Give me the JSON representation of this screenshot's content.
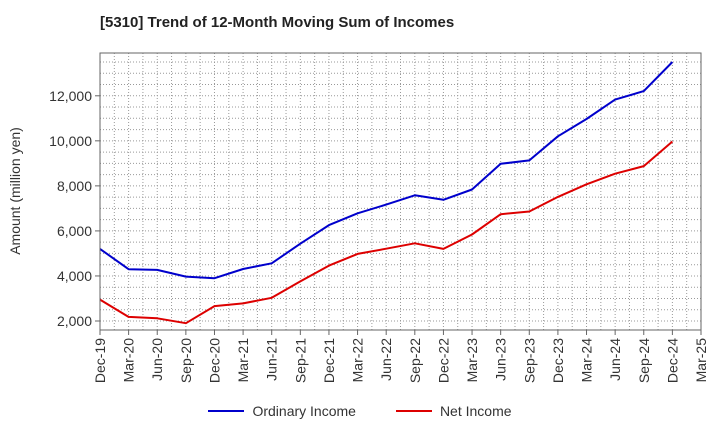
{
  "chart_data": {
    "type": "line",
    "title": "[5310]  Trend of 12-Month Moving Sum of Incomes",
    "xlabel": "",
    "ylabel": "Amount (million yen)",
    "ylim": [
      1600,
      13900
    ],
    "yticks": [
      2000,
      4000,
      6000,
      8000,
      10000,
      12000
    ],
    "ytick_labels": [
      "2,000",
      "4,000",
      "6,000",
      "8,000",
      "10,000",
      "12,000"
    ],
    "grid": true,
    "legend_position": "bottom",
    "x": [
      "Dec-19",
      "Mar-20",
      "Jun-20",
      "Sep-20",
      "Dec-20",
      "Mar-21",
      "Jun-21",
      "Sep-21",
      "Dec-21",
      "Mar-22",
      "Jun-22",
      "Sep-22",
      "Dec-22",
      "Mar-23",
      "Jun-23",
      "Sep-23",
      "Dec-23",
      "Mar-24",
      "Jun-24",
      "Sep-24",
      "Dec-24",
      "Mar-25"
    ],
    "series": [
      {
        "name": "Ordinary Income",
        "color": "#0000cc",
        "values": [
          5200,
          4300,
          4270,
          3970,
          3900,
          4310,
          4560,
          5430,
          6260,
          6780,
          7170,
          7580,
          7380,
          7840,
          8980,
          9130,
          10200,
          10970,
          11830,
          12210,
          13500,
          null
        ]
      },
      {
        "name": "Net Income",
        "color": "#dd0000",
        "values": [
          2950,
          2180,
          2120,
          1900,
          2660,
          2780,
          3030,
          3760,
          4460,
          4980,
          5210,
          5450,
          5200,
          5840,
          6740,
          6860,
          7510,
          8070,
          8540,
          8880,
          9970,
          null
        ]
      }
    ]
  }
}
